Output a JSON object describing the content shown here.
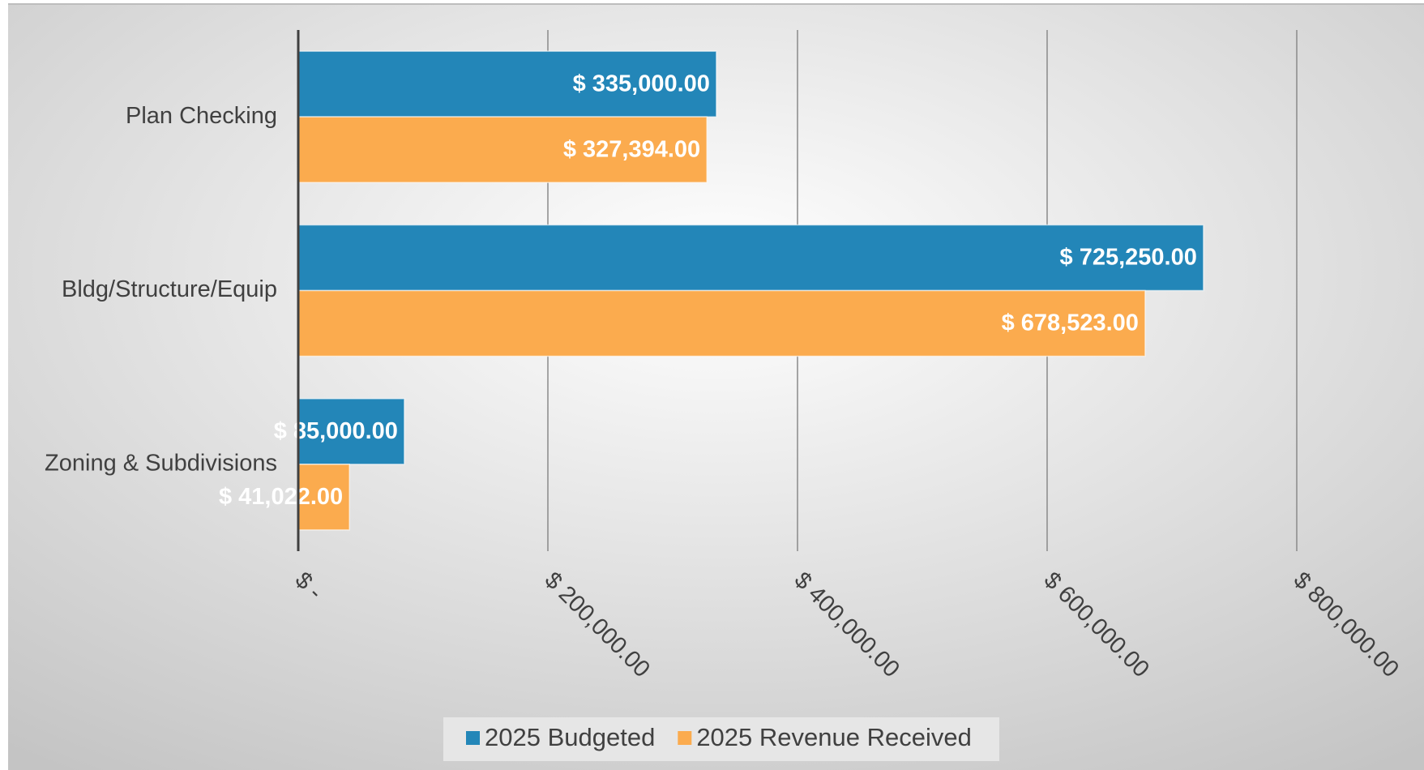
{
  "chart_data": {
    "type": "bar",
    "orientation": "horizontal",
    "categories": [
      "Plan Checking",
      "Bldg/Structure/Equip",
      "Zoning & Subdivisions"
    ],
    "series": [
      {
        "name": "2025 Budgeted",
        "color": "#2386b8",
        "values": [
          335000,
          725250,
          85000
        ],
        "value_labels": [
          "$ 335,000.00",
          "$ 725,250.00",
          "$ 85,000.00"
        ]
      },
      {
        "name": "2025 Revenue Received",
        "color": "#fbab4e",
        "values": [
          327394,
          678523,
          41022
        ],
        "value_labels": [
          "$ 327,394.00",
          "$ 678,523.00",
          "$ 41,022.00"
        ]
      }
    ],
    "xlim": [
      0,
      800000
    ],
    "xticks": [
      {
        "value": 0,
        "label": "$ -"
      },
      {
        "value": 200000,
        "label": "$ 200,000.00"
      },
      {
        "value": 400000,
        "label": "$ 400,000.00"
      },
      {
        "value": 600000,
        "label": "$ 600,000.00"
      },
      {
        "value": 800000,
        "label": "$ 800,000.00"
      }
    ],
    "grid": true,
    "legend": "bottom"
  }
}
